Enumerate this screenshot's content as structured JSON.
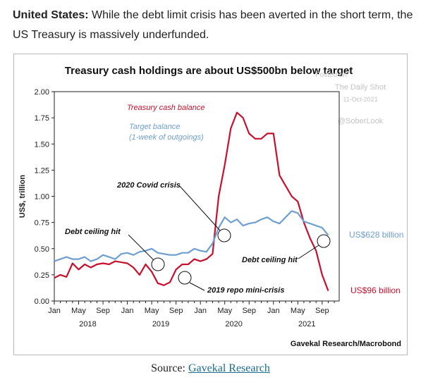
{
  "intro": {
    "bold": "United States:",
    "text": " While the debt limit crisis has been averted in the short term, the US Treasury is massively underfunded."
  },
  "source": {
    "prefix": "Source: ",
    "link": "Gavekal Research"
  },
  "chart_data": {
    "type": "line",
    "title": "Treasury cash holdings are about US$500bn below target",
    "ylabel": "US$, trillion",
    "ylim": [
      0,
      2.0
    ],
    "yticks": [
      "0.00",
      "0.25",
      "0.50",
      "0.75",
      "1.00",
      "1.25",
      "1.50",
      "1.75",
      "2.00"
    ],
    "xticks": [
      "Jan",
      "May",
      "Sep",
      "Jan",
      "May",
      "Sep",
      "Jan",
      "May",
      "Sep",
      "Jan",
      "May",
      "Sep"
    ],
    "years": [
      "2018",
      "2019",
      "2020",
      "2021"
    ],
    "credit": "Gavekal Research/Macrobond",
    "watermark": [
      "Posted on",
      "The Daily Shot",
      "11-Oct-2021",
      "@SoberLook"
    ],
    "annotations": [
      "2020 Covid crisis",
      "Debt ceiling hit",
      "2019 repo mini-crisis",
      "Debt ceiling hit"
    ],
    "end_labels": [
      "US$628 billion",
      "US$96 billion"
    ],
    "series": [
      {
        "name": "Treasury cash balance",
        "color": "#c8102e",
        "x": [
          "2018-01",
          "2018-02",
          "2018-03",
          "2018-04",
          "2018-05",
          "2018-06",
          "2018-07",
          "2018-08",
          "2018-09",
          "2018-10",
          "2018-11",
          "2018-12",
          "2019-01",
          "2019-02",
          "2019-03",
          "2019-04",
          "2019-05",
          "2019-06",
          "2019-07",
          "2019-08",
          "2019-09",
          "2019-10",
          "2019-11",
          "2019-12",
          "2020-01",
          "2020-02",
          "2020-03",
          "2020-04",
          "2020-05",
          "2020-06",
          "2020-07",
          "2020-08",
          "2020-09",
          "2020-10",
          "2020-11",
          "2020-12",
          "2021-01",
          "2021-02",
          "2021-03",
          "2021-04",
          "2021-05",
          "2021-06",
          "2021-07",
          "2021-08",
          "2021-09",
          "2021-10"
        ],
        "values": [
          0.22,
          0.25,
          0.23,
          0.36,
          0.3,
          0.35,
          0.32,
          0.35,
          0.36,
          0.35,
          0.38,
          0.37,
          0.36,
          0.32,
          0.25,
          0.35,
          0.28,
          0.17,
          0.15,
          0.18,
          0.3,
          0.35,
          0.35,
          0.4,
          0.38,
          0.4,
          0.45,
          1.0,
          1.3,
          1.65,
          1.8,
          1.75,
          1.6,
          1.55,
          1.55,
          1.6,
          1.6,
          1.2,
          1.1,
          1.0,
          0.95,
          0.75,
          0.6,
          0.48,
          0.25,
          0.096
        ]
      },
      {
        "name": "Target balance (1-week of outgoings)",
        "color": "#6f9fd0",
        "x": [
          "2018-01",
          "2018-02",
          "2018-03",
          "2018-04",
          "2018-05",
          "2018-06",
          "2018-07",
          "2018-08",
          "2018-09",
          "2018-10",
          "2018-11",
          "2018-12",
          "2019-01",
          "2019-02",
          "2019-03",
          "2019-04",
          "2019-05",
          "2019-06",
          "2019-07",
          "2019-08",
          "2019-09",
          "2019-10",
          "2019-11",
          "2019-12",
          "2020-01",
          "2020-02",
          "2020-03",
          "2020-04",
          "2020-05",
          "2020-06",
          "2020-07",
          "2020-08",
          "2020-09",
          "2020-10",
          "2020-11",
          "2020-12",
          "2021-01",
          "2021-02",
          "2021-03",
          "2021-04",
          "2021-05",
          "2021-06",
          "2021-07",
          "2021-08",
          "2021-09",
          "2021-10"
        ],
        "values": [
          0.38,
          0.4,
          0.42,
          0.4,
          0.4,
          0.42,
          0.38,
          0.4,
          0.44,
          0.42,
          0.4,
          0.45,
          0.46,
          0.44,
          0.47,
          0.48,
          0.5,
          0.46,
          0.45,
          0.44,
          0.44,
          0.46,
          0.46,
          0.5,
          0.48,
          0.47,
          0.55,
          0.7,
          0.8,
          0.75,
          0.78,
          0.72,
          0.74,
          0.75,
          0.78,
          0.8,
          0.76,
          0.74,
          0.8,
          0.86,
          0.84,
          0.76,
          0.74,
          0.72,
          0.7,
          0.628
        ]
      }
    ]
  }
}
